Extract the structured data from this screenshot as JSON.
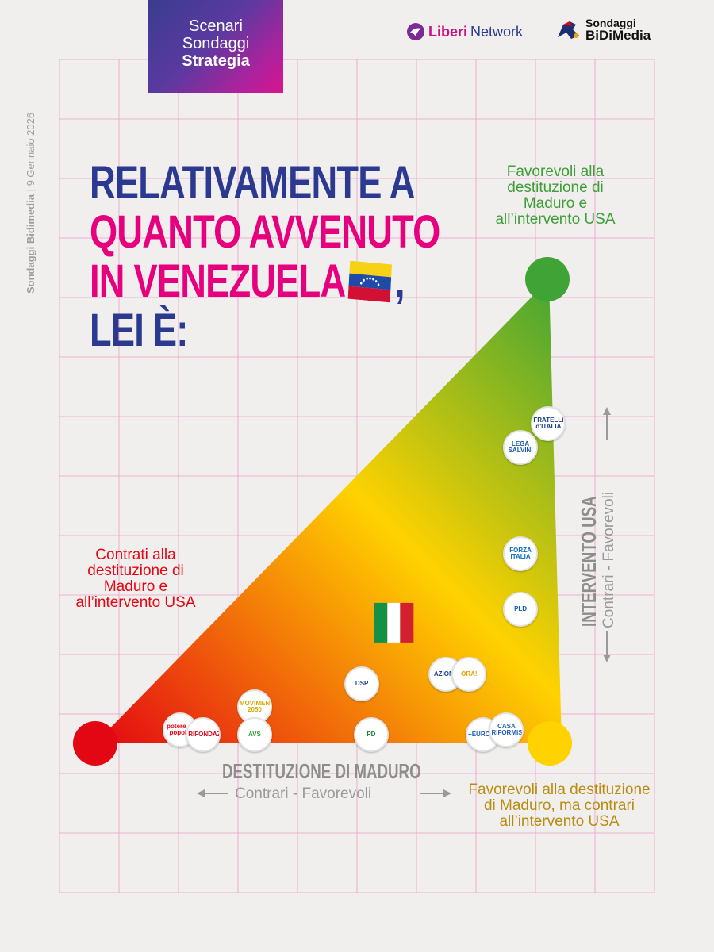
{
  "header": {
    "badge_lines": [
      "Scenari",
      "Sondaggi",
      "Strategia"
    ],
    "logo_liberi": {
      "part1": "Liberi",
      "part2": "Network"
    },
    "logo_bidimedia": {
      "line1": "Sondaggi",
      "line2": "BiDiMedia"
    }
  },
  "side_caption": {
    "source": "Sondaggi Bidimedia",
    "sep": " | ",
    "date": "9 Gennaio 2026"
  },
  "title": {
    "line1": "RELATIVAMENTE A",
    "line2": "QUANTO AVVENUTO",
    "line3": "IN VENEZUELA",
    "line3_suffix": ",",
    "line4": "LEI È:"
  },
  "annotations": {
    "top": "Favorevoli alla destituzione di Maduro e all’intervento USA",
    "left": "Contrati alla destituzione di Maduro e all’intervento USA",
    "bottom_right": "Favorevoli alla destituzione di Maduro, ma contrari all’intervento USA"
  },
  "colors": {
    "red": "#e30613",
    "yellow": "#ffd200",
    "green": "#3fa435",
    "blue_title": "#2b3990",
    "pink_title": "#e6007e",
    "grid": "#ec9ec6"
  },
  "chart_data": {
    "type": "scatter",
    "x_axis": {
      "title": "DESTITUZIONE DI MADURO",
      "range_label": "Contrari - Favorevoli"
    },
    "y_axis": {
      "title": "INTERVENTO USA",
      "range_label": "Contrari - Favorevoli"
    },
    "xlim": [
      0,
      1
    ],
    "ylim": [
      0,
      1
    ],
    "points": [
      {
        "label": "ITALIA",
        "x": 0.64,
        "y": 0.26,
        "kind": "flag"
      },
      {
        "label": "Fratelli d'Italia",
        "short": "FRATELLI d'ITALIA",
        "x": 0.97,
        "y": 0.69,
        "color": "#1b3f8b"
      },
      {
        "label": "Lega Salvini Premier",
        "short": "LEGA SALVINI",
        "x": 0.91,
        "y": 0.64,
        "color": "#1a59a8"
      },
      {
        "label": "Forza Italia Berlusconi Presidente",
        "short": "FORZA ITALIA",
        "x": 0.91,
        "y": 0.41,
        "color": "#0a6fc2"
      },
      {
        "label": "Partito Liberaldemocratico",
        "short": "PLD",
        "x": 0.91,
        "y": 0.29,
        "color": "#0b5fae"
      },
      {
        "label": "Azione Calenda",
        "short": "AZIONE",
        "x": 0.75,
        "y": 0.15,
        "color": "#1f3f8a"
      },
      {
        "label": "Ora!",
        "short": "ORA!",
        "x": 0.8,
        "y": 0.15,
        "color": "#e8a400"
      },
      {
        "label": "DSP",
        "short": "DSP",
        "x": 0.57,
        "y": 0.13,
        "color": "#1f3a8a"
      },
      {
        "label": "Movimento 5 Stelle 2050",
        "short": "MOVIMENTO 2050",
        "x": 0.34,
        "y": 0.08,
        "color": "#d4a600"
      },
      {
        "label": "Potere al Popolo",
        "short": "potere al popolo",
        "x": 0.18,
        "y": 0.03,
        "color": "#e30613"
      },
      {
        "label": "Rifondazione Comunista",
        "short": "RIFONDAZIONE",
        "x": 0.23,
        "y": 0.02,
        "color": "#d8071b"
      },
      {
        "label": "Alleanza Verdi Sinistra",
        "short": "AVS",
        "x": 0.34,
        "y": 0.02,
        "color": "#2c9a3a"
      },
      {
        "label": "Partito Democratico",
        "short": "PD",
        "x": 0.59,
        "y": 0.02,
        "color": "#1b7e3a"
      },
      {
        "label": "+Europa Emma Bonino",
        "short": "+EUROPA",
        "x": 0.83,
        "y": 0.02,
        "color": "#1f5fb0"
      },
      {
        "label": "Casa Riformista",
        "short": "CASA RIFORMISTA",
        "x": 0.88,
        "y": 0.03,
        "color": "#1f5fb0"
      }
    ]
  }
}
